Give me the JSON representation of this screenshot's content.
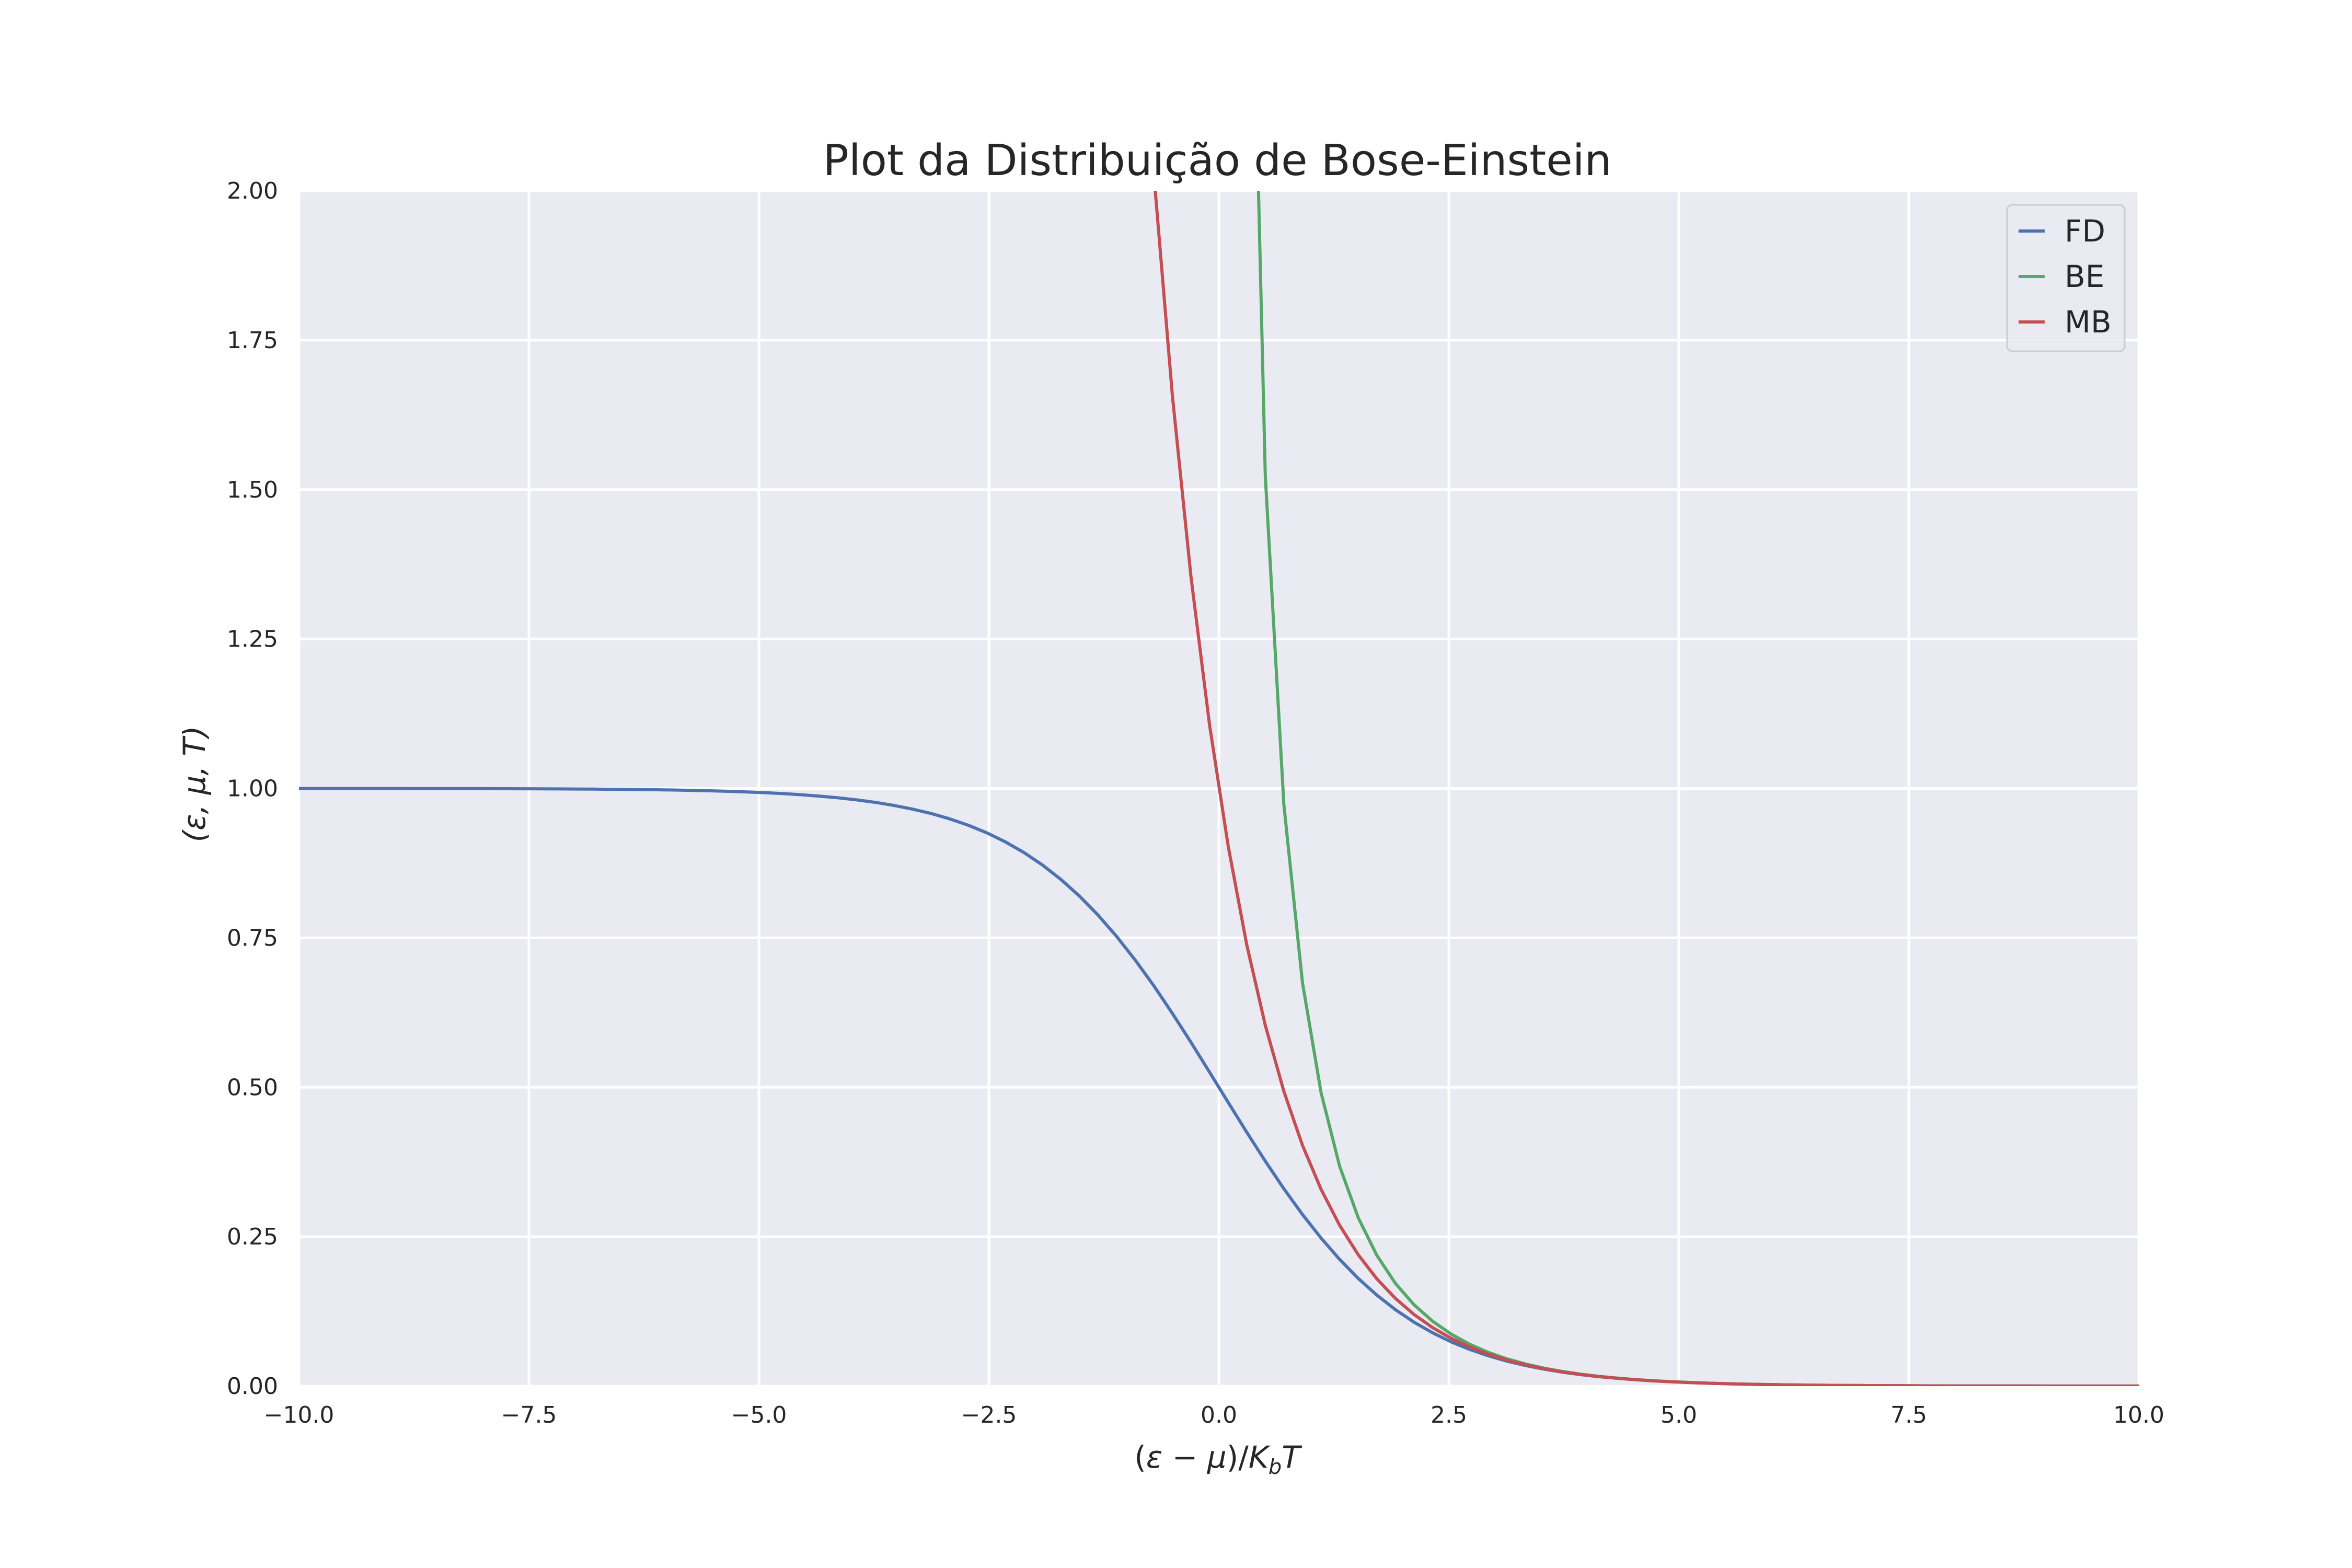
{
  "chart_data": {
    "type": "line",
    "title": "Plot da Distribuição de Bose-Einstein",
    "xlabel": "(ε − μ)/K_bT",
    "ylabel": "(ε, μ, T)",
    "xlim": [
      -10,
      10
    ],
    "ylim": [
      0,
      2
    ],
    "grid": true,
    "legend_position": "top-right",
    "x_ticks": [
      "−10.0",
      "−7.5",
      "−5.0",
      "−2.5",
      "0.0",
      "2.5",
      "5.0",
      "7.5",
      "10.0"
    ],
    "y_ticks": [
      "0.00",
      "0.25",
      "0.50",
      "0.75",
      "1.00",
      "1.25",
      "1.50",
      "1.75",
      "2.00"
    ],
    "background_color": "#eaeaf2",
    "series": [
      {
        "name": "FD",
        "color": "#4c72b0",
        "formula": "1/(exp(x)+1)"
      },
      {
        "name": "BE",
        "color": "#55a868",
        "formula": "1/(exp(x)-1)"
      },
      {
        "name": "MB",
        "color": "#c44e52",
        "formula": "exp(-x)"
      }
    ]
  }
}
